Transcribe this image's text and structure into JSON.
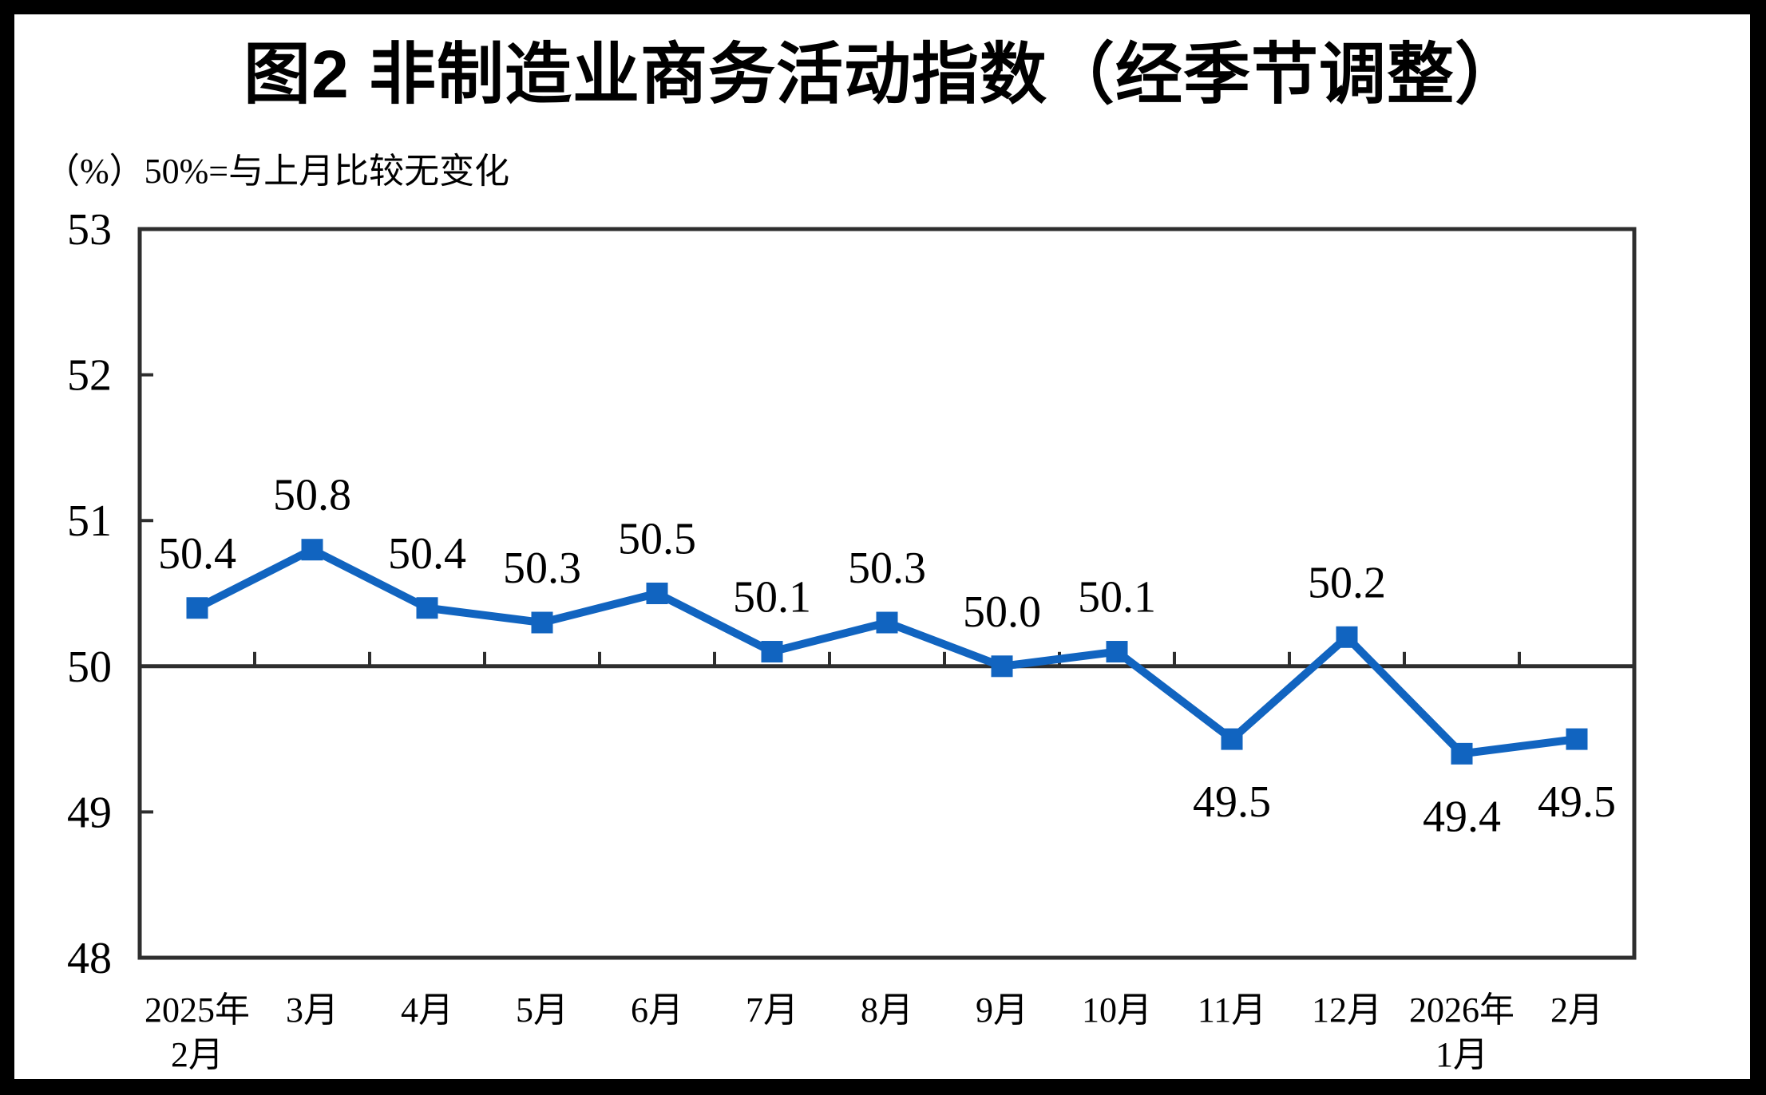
{
  "title": "图2 非制造业商务活动指数（经季节调整）",
  "subtitle": "（%）50%=与上月比较无变化",
  "chart_data": {
    "type": "line",
    "title": "图2 非制造业商务活动指数（经季节调整）",
    "note": "（%）50%=与上月比较无变化",
    "categories": [
      "2025年\n2月",
      "3月",
      "4月",
      "5月",
      "6月",
      "7月",
      "8月",
      "9月",
      "10月",
      "11月",
      "12月",
      "2026年\n1月",
      "2月"
    ],
    "values": [
      50.4,
      50.8,
      50.4,
      50.3,
      50.5,
      50.1,
      50.3,
      50.0,
      50.1,
      49.5,
      50.2,
      49.4,
      49.5
    ],
    "data_labels": [
      "50.4",
      "50.8",
      "50.4",
      "50.3",
      "50.5",
      "50.1",
      "50.3",
      "50.0",
      "50.1",
      "49.5",
      "50.2",
      "49.4",
      "49.5"
    ],
    "label_placement": [
      "above",
      "above",
      "above",
      "above",
      "above",
      "above",
      "above",
      "above",
      "above",
      "below",
      "above",
      "below",
      "below"
    ],
    "ylim": [
      48,
      53
    ],
    "yticks": [
      48,
      49,
      50,
      51,
      52,
      53
    ],
    "reference_line": 50,
    "marker": "square",
    "grid": "off",
    "legend": "none",
    "colors": {
      "series": "#1164C0",
      "axis": "#2E2E2E",
      "text": "#000000",
      "background": "#FFFFFF",
      "frame": "#000000"
    }
  }
}
